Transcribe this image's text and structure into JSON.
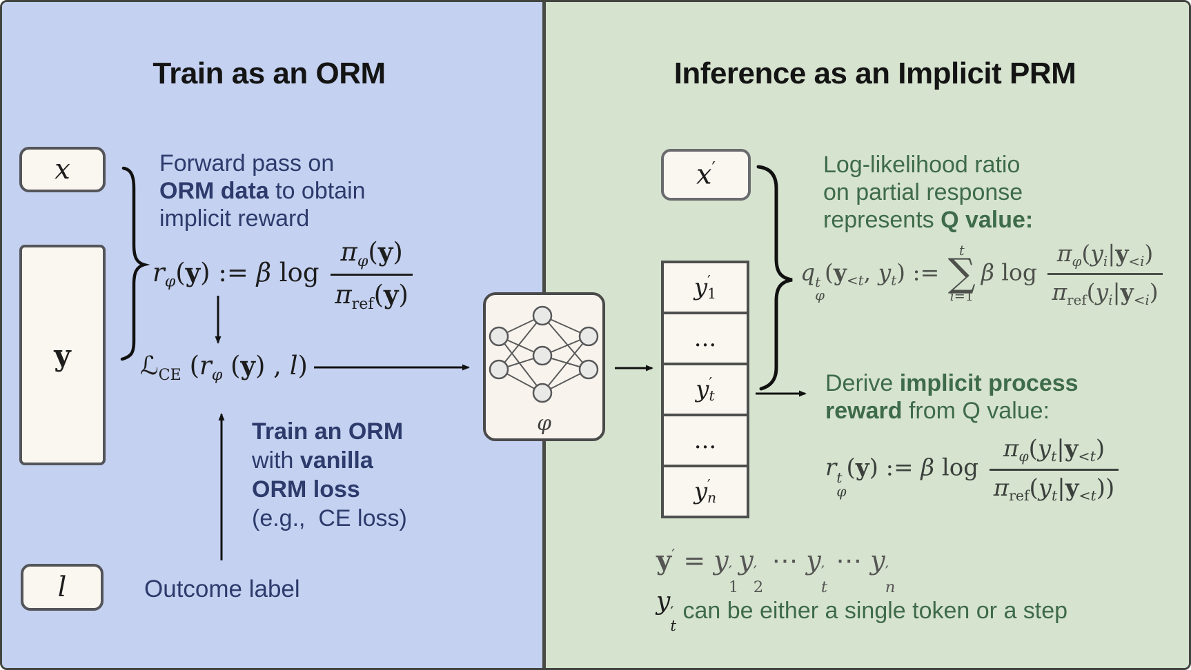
{
  "colors": {
    "left_background": "#c4d1f0",
    "right_background": "#d6e3cf",
    "divider": "#484b44",
    "box_fill": "#faf7f0",
    "box_border": "#54555a",
    "title_text": "#141414",
    "left_text": "#2d3a6c",
    "right_text": "#3e6b49",
    "math_dark": "#1d1d1d",
    "math_gray": "#4d504b",
    "arrow": "#111111"
  },
  "panel_left": {
    "title": "Train as an ORM",
    "forward_pass_lines": [
      [
        {
          "t": "Forward pass on"
        }
      ],
      [
        {
          "t": "ORM data",
          "b": true
        },
        {
          "t": " to obtain"
        }
      ],
      [
        {
          "t": "implicit reward"
        }
      ]
    ],
    "train_orm_lines": [
      [
        {
          "t": "Train an ORM",
          "b": true
        }
      ],
      [
        {
          "t": "with "
        },
        {
          "t": "vanilla",
          "b": true
        }
      ],
      [
        {
          "t": "ORM loss",
          "b": true
        }
      ],
      [
        {
          "t": "(e.g.,  CE loss)"
        }
      ]
    ],
    "outcome_label": "Outcome label",
    "box_x": [
      {
        "i": "x"
      }
    ],
    "box_y": [
      {
        "b": "y"
      }
    ],
    "box_l": [
      {
        "i": "l"
      }
    ],
    "formula_reward": [
      {
        "i": "r"
      },
      {
        "sub": [
          {
            "i": "φ"
          }
        ]
      },
      {
        "r": "("
      },
      {
        "b": "y"
      },
      {
        "r": ") := "
      },
      {
        "i": "β"
      },
      {
        "r": " log "
      },
      {
        "f": {
          "n": [
            {
              "i": "π"
            },
            {
              "sub": [
                {
                  "i": "φ"
                }
              ]
            },
            {
              "r": "("
            },
            {
              "b": "y"
            },
            {
              "r": ")"
            }
          ],
          "d": [
            {
              "i": "π"
            },
            {
              "sub": [
                {
                  "r": "ref"
                }
              ]
            },
            {
              "r": "("
            },
            {
              "b": "y"
            },
            {
              "r": ")"
            }
          ]
        }
      }
    ],
    "formula_loss": [
      {
        "r": "ℒ"
      },
      {
        "sub": [
          {
            "r": "CE"
          }
        ]
      },
      {
        "r": " ("
      },
      {
        "i": "r"
      },
      {
        "sub": [
          {
            "i": "φ"
          }
        ]
      },
      {
        "r": " ("
      },
      {
        "b": "y"
      },
      {
        "r": ") , "
      },
      {
        "i": "l"
      },
      {
        "r": ")"
      }
    ]
  },
  "network": {
    "label": [
      {
        "i": "φ"
      }
    ]
  },
  "panel_right": {
    "title": "Inference as an Implicit PRM",
    "box_x_prime": [
      {
        "i": "x"
      },
      {
        "sup": [
          {
            "r": "′"
          }
        ]
      }
    ],
    "token_cells": [
      [
        {
          "i": "y"
        },
        {
          "ss": {
            "u": [
              {
                "r": "′"
              }
            ],
            "d": [
              {
                "r": "1"
              }
            ]
          }
        }
      ],
      [
        {
          "r": "..."
        }
      ],
      [
        {
          "i": "y"
        },
        {
          "ss": {
            "u": [
              {
                "r": "′"
              }
            ],
            "d": [
              {
                "i": "t"
              }
            ]
          }
        }
      ],
      [
        {
          "r": "..."
        }
      ],
      [
        {
          "i": "y"
        },
        {
          "ss": {
            "u": [
              {
                "r": "′"
              }
            ],
            "d": [
              {
                "i": "n"
              }
            ]
          }
        }
      ]
    ],
    "loglik_lines": [
      [
        {
          "t": "Log-likelihood ratio"
        }
      ],
      [
        {
          "t": "on partial response"
        }
      ],
      [
        {
          "t": "represents "
        },
        {
          "t": "Q value:",
          "b": true
        }
      ]
    ],
    "derive_lines": [
      [
        {
          "t": "Derive "
        },
        {
          "t": "implicit process",
          "b": true
        }
      ],
      [
        {
          "t": "reward",
          "b": true
        },
        {
          "t": " from Q value:"
        }
      ]
    ],
    "formula_q": [
      {
        "i": "q"
      },
      {
        "ss": {
          "u": [
            {
              "i": "t"
            }
          ],
          "d": [
            {
              "i": "φ"
            }
          ]
        }
      },
      {
        "r": "("
      },
      {
        "b": "y"
      },
      {
        "sub": [
          {
            "r": "<"
          },
          {
            "i": "t"
          }
        ]
      },
      {
        "r": ", "
      },
      {
        "i": "y"
      },
      {
        "sub": [
          {
            "i": "t"
          }
        ]
      },
      {
        "r": ") := "
      },
      {
        "sum": {
          "op": "∑",
          "u": [
            {
              "i": "t"
            }
          ],
          "d": [
            {
              "i": "i"
            },
            {
              "r": "=1"
            }
          ]
        }
      },
      {
        "i": "β"
      },
      {
        "r": " log "
      },
      {
        "f": {
          "n": [
            {
              "i": "π"
            },
            {
              "sub": [
                {
                  "i": "φ"
                }
              ]
            },
            {
              "r": "("
            },
            {
              "i": "y"
            },
            {
              "sub": [
                {
                  "i": "i"
                }
              ]
            },
            {
              "r": "|"
            },
            {
              "b": "y"
            },
            {
              "sub": [
                {
                  "r": "<"
                },
                {
                  "i": "i"
                }
              ]
            },
            {
              "r": ")"
            }
          ],
          "d": [
            {
              "i": "π"
            },
            {
              "sub": [
                {
                  "r": "ref"
                }
              ]
            },
            {
              "r": "("
            },
            {
              "i": "y"
            },
            {
              "sub": [
                {
                  "i": "i"
                }
              ]
            },
            {
              "r": "|"
            },
            {
              "b": "y"
            },
            {
              "sub": [
                {
                  "r": "<"
                },
                {
                  "i": "i"
                }
              ]
            },
            {
              "r": ")"
            }
          ]
        }
      }
    ],
    "formula_r_process": [
      {
        "i": "r"
      },
      {
        "ss": {
          "u": [
            {
              "i": "t"
            }
          ],
          "d": [
            {
              "i": "φ"
            }
          ]
        }
      },
      {
        "r": "("
      },
      {
        "b": "y"
      },
      {
        "r": ") := "
      },
      {
        "i": "β"
      },
      {
        "r": " log "
      },
      {
        "f": {
          "n": [
            {
              "i": "π"
            },
            {
              "sub": [
                {
                  "i": "φ"
                }
              ]
            },
            {
              "r": "("
            },
            {
              "i": "y"
            },
            {
              "sub": [
                {
                  "i": "t"
                }
              ]
            },
            {
              "r": "|"
            },
            {
              "b": "y"
            },
            {
              "sub": [
                {
                  "r": "<"
                },
                {
                  "i": "t"
                }
              ]
            },
            {
              "r": ")"
            }
          ],
          "d": [
            {
              "i": "π"
            },
            {
              "sub": [
                {
                  "r": "ref"
                }
              ]
            },
            {
              "r": "("
            },
            {
              "i": "y"
            },
            {
              "sub": [
                {
                  "i": "t"
                }
              ]
            },
            {
              "r": "|"
            },
            {
              "b": "y"
            },
            {
              "sub": [
                {
                  "r": "<"
                },
                {
                  "i": "t"
                }
              ]
            },
            {
              "r": "))"
            }
          ]
        }
      }
    ],
    "formula_sequence": [
      {
        "b": "y"
      },
      {
        "sup": [
          {
            "r": "′"
          }
        ]
      },
      {
        "r": " = "
      },
      {
        "i": "y"
      },
      {
        "ss": {
          "u": [
            {
              "r": "′"
            }
          ],
          "d": [
            {
              "r": "1"
            }
          ]
        }
      },
      {
        "i": "y"
      },
      {
        "ss": {
          "u": [
            {
              "r": "′"
            }
          ],
          "d": [
            {
              "r": "2"
            }
          ]
        }
      },
      {
        "r": " ⋯ "
      },
      {
        "i": "y"
      },
      {
        "ss": {
          "u": [
            {
              "r": "′"
            }
          ],
          "d": [
            {
              "i": "t"
            }
          ]
        }
      },
      {
        "r": " ⋯ "
      },
      {
        "i": "y"
      },
      {
        "ss": {
          "u": [
            {
              "r": "′"
            }
          ],
          "d": [
            {
              "i": "n"
            }
          ]
        }
      }
    ],
    "note_math": [
      {
        "i": "y"
      },
      {
        "ss": {
          "u": [
            {
              "r": "′"
            }
          ],
          "d": [
            {
              "i": "t"
            }
          ]
        }
      }
    ],
    "note_text": " can be either a single token or a step"
  }
}
